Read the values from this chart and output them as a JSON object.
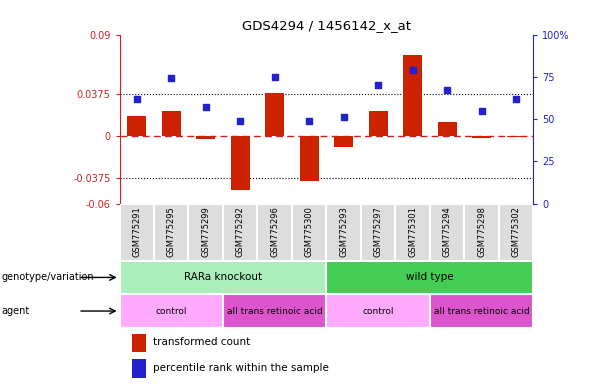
{
  "title": "GDS4294 / 1456142_x_at",
  "samples": [
    "GSM775291",
    "GSM775295",
    "GSM775299",
    "GSM775292",
    "GSM775296",
    "GSM775300",
    "GSM775293",
    "GSM775297",
    "GSM775301",
    "GSM775294",
    "GSM775298",
    "GSM775302"
  ],
  "bar_values": [
    0.018,
    0.022,
    -0.003,
    -0.048,
    0.038,
    -0.04,
    -0.01,
    0.022,
    0.072,
    0.012,
    -0.002,
    -0.001
  ],
  "percentile_values": [
    62,
    74,
    57,
    49,
    75,
    49,
    51,
    70,
    79,
    67,
    55,
    62
  ],
  "ylim_left": [
    -0.06,
    0.09
  ],
  "ylim_right": [
    0,
    100
  ],
  "yticks_left": [
    -0.06,
    -0.0375,
    0,
    0.0375,
    0.09
  ],
  "yticks_left_labels": [
    "-0.06",
    "-0.0375",
    "0",
    "0.0375",
    "0.09"
  ],
  "yticks_right": [
    0,
    25,
    50,
    75,
    100
  ],
  "yticks_right_labels": [
    "0",
    "25",
    "50",
    "75",
    "100%"
  ],
  "hlines": [
    0.0375,
    -0.0375
  ],
  "bar_color": "#CC2200",
  "dot_color": "#2222CC",
  "zeroline_color": "#CC2222",
  "hline_color": "#000000",
  "xlabels_bg": "#DDDDDD",
  "genotype_groups": [
    {
      "label": "RARa knockout",
      "start": 0,
      "end": 6,
      "color": "#AAEEBB"
    },
    {
      "label": "wild type",
      "start": 6,
      "end": 12,
      "color": "#44CC55"
    }
  ],
  "agent_groups": [
    {
      "label": "control",
      "start": 0,
      "end": 3,
      "color": "#FFAAFF"
    },
    {
      "label": "all trans retinoic acid",
      "start": 3,
      "end": 6,
      "color": "#DD55CC"
    },
    {
      "label": "control",
      "start": 6,
      "end": 9,
      "color": "#FFAAFF"
    },
    {
      "label": "all trans retinoic acid",
      "start": 9,
      "end": 12,
      "color": "#DD55CC"
    }
  ],
  "legend_bar_label": "transformed count",
  "legend_dot_label": "percentile rank within the sample",
  "genotype_label": "genotype/variation",
  "agent_label": "agent",
  "background_color": "#FFFFFF"
}
